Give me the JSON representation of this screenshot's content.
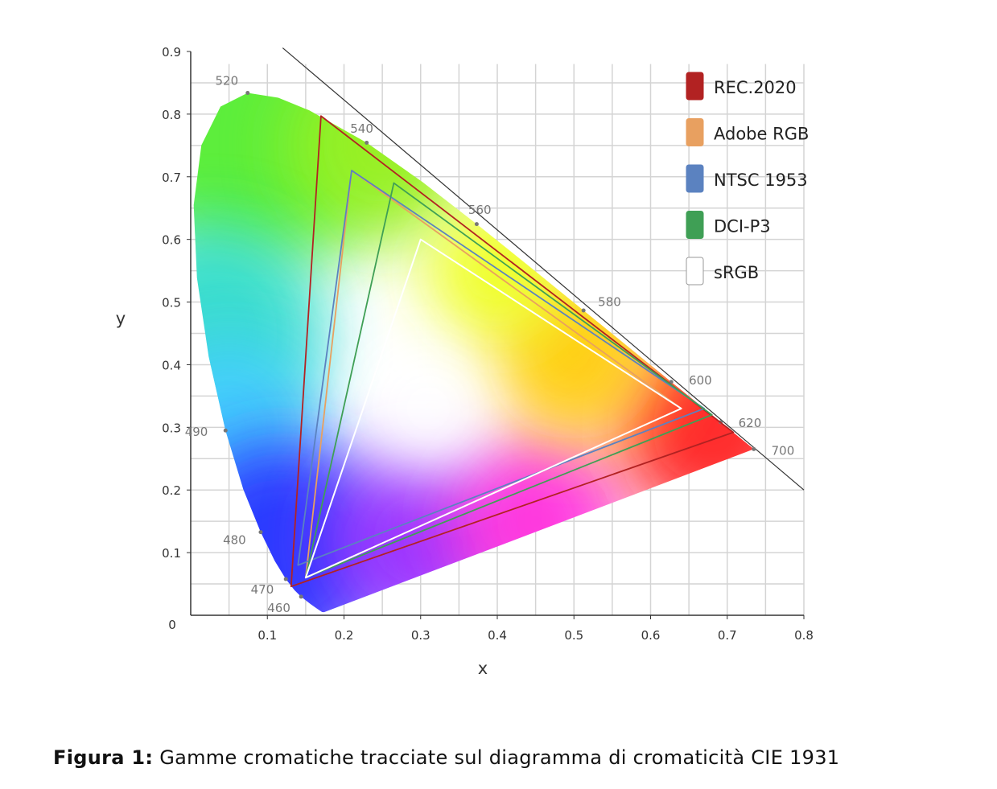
{
  "chart_data": {
    "type": "scatter",
    "title": "",
    "xlabel": "x",
    "ylabel": "y",
    "xlim": [
      0,
      0.8
    ],
    "ylim": [
      0,
      0.9
    ],
    "grid": true,
    "legend_position": "top-right",
    "x_ticks": [
      "0.1",
      "0.2",
      "0.3",
      "0.4",
      "0.5",
      "0.6",
      "0.7",
      "0.8"
    ],
    "y_ticks": [
      "0.1",
      "0.2",
      "0.3",
      "0.4",
      "0.5",
      "0.6",
      "0.7",
      "0.8",
      "0.9"
    ],
    "origin_label": "0",
    "spectral_locus": [
      [
        0.1741,
        0.005
      ],
      [
        0.1714,
        0.0051
      ],
      [
        0.1644,
        0.0109
      ],
      [
        0.1566,
        0.0177
      ],
      [
        0.144,
        0.0297
      ],
      [
        0.1355,
        0.0399
      ],
      [
        0.1241,
        0.0578
      ],
      [
        0.1096,
        0.0868
      ],
      [
        0.0913,
        0.1327
      ],
      [
        0.0687,
        0.2007
      ],
      [
        0.0454,
        0.295
      ],
      [
        0.0235,
        0.4127
      ],
      [
        0.0082,
        0.5384
      ],
      [
        0.0039,
        0.6548
      ],
      [
        0.0139,
        0.7502
      ],
      [
        0.0389,
        0.812
      ],
      [
        0.0743,
        0.8338
      ],
      [
        0.1142,
        0.8262
      ],
      [
        0.1547,
        0.8059
      ],
      [
        0.2296,
        0.7543
      ],
      [
        0.3016,
        0.6923
      ],
      [
        0.3731,
        0.6245
      ],
      [
        0.4441,
        0.5547
      ],
      [
        0.5125,
        0.4866
      ],
      [
        0.5752,
        0.4242
      ],
      [
        0.627,
        0.3725
      ],
      [
        0.6658,
        0.334
      ],
      [
        0.6915,
        0.3083
      ],
      [
        0.719,
        0.2809
      ],
      [
        0.7347,
        0.2653
      ]
    ],
    "wavelength_labels": [
      {
        "label": "460",
        "x": 0.144,
        "y": 0.0297
      },
      {
        "label": "470",
        "x": 0.1241,
        "y": 0.0578
      },
      {
        "label": "480",
        "x": 0.0913,
        "y": 0.1327
      },
      {
        "label": "490",
        "x": 0.0454,
        "y": 0.295
      },
      {
        "label": "520",
        "x": 0.0743,
        "y": 0.8338
      },
      {
        "label": "540",
        "x": 0.2296,
        "y": 0.7543
      },
      {
        "label": "560",
        "x": 0.3731,
        "y": 0.6245
      },
      {
        "label": "580",
        "x": 0.5125,
        "y": 0.4866
      },
      {
        "label": "600",
        "x": 0.627,
        "y": 0.3725
      },
      {
        "label": "620",
        "x": 0.6915,
        "y": 0.3083
      },
      {
        "label": "700",
        "x": 0.7347,
        "y": 0.2653
      }
    ],
    "boundary_line": {
      "from": [
        0.12,
        0.88
      ],
      "to": [
        0.8,
        0.2
      ]
    },
    "series": [
      {
        "name": "REC.2020",
        "color": "#b22222",
        "points": [
          [
            0.708,
            0.292
          ],
          [
            0.17,
            0.797
          ],
          [
            0.131,
            0.046
          ]
        ]
      },
      {
        "name": "Adobe RGB",
        "color": "#e8a060",
        "points": [
          [
            0.64,
            0.33
          ],
          [
            0.21,
            0.71
          ],
          [
            0.15,
            0.06
          ]
        ]
      },
      {
        "name": "NTSC 1953",
        "color": "#5b82c0",
        "points": [
          [
            0.67,
            0.33
          ],
          [
            0.21,
            0.71
          ],
          [
            0.14,
            0.08
          ]
        ]
      },
      {
        "name": "DCI-P3",
        "color": "#3f9f55",
        "points": [
          [
            0.68,
            0.32
          ],
          [
            0.265,
            0.69
          ],
          [
            0.15,
            0.06
          ]
        ]
      },
      {
        "name": "sRGB",
        "color": "#ffffff",
        "points": [
          [
            0.64,
            0.33
          ],
          [
            0.3,
            0.6
          ],
          [
            0.15,
            0.06
          ]
        ]
      }
    ]
  },
  "caption": {
    "label": "Figura 1:",
    "text": " Gamme cromatiche tracciate sul diagramma di cromaticità CIE 1931"
  }
}
